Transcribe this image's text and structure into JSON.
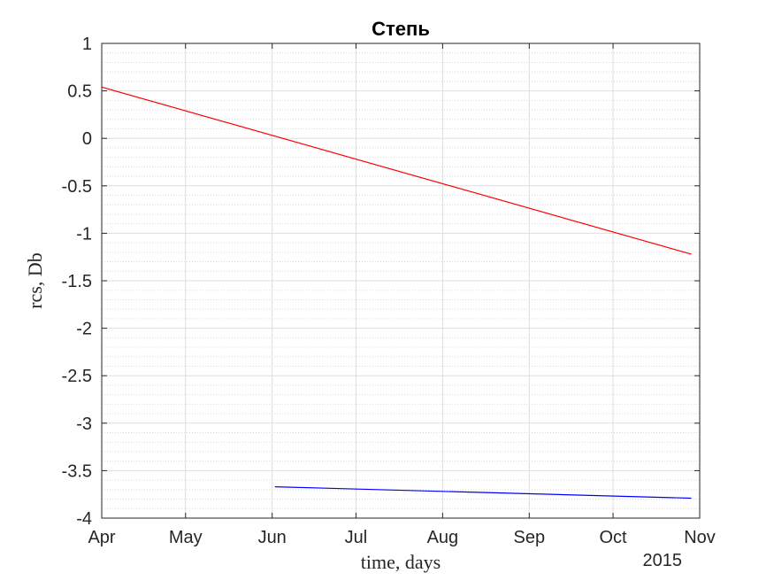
{
  "chart_data": {
    "type": "line",
    "title": "Степь",
    "xlabel": "time, days",
    "ylabel": "rcs, Db",
    "x_secondary_label": "2015",
    "x_ticks": [
      "Apr",
      "May",
      "Jun",
      "Jul",
      "Aug",
      "Sep",
      "Oct",
      "Nov"
    ],
    "x_tick_dates": [
      "2015-04-01",
      "2015-05-01",
      "2015-06-01",
      "2015-07-01",
      "2015-08-01",
      "2015-09-01",
      "2015-10-01",
      "2015-11-01"
    ],
    "xlim": [
      "2015-04-01",
      "2015-11-01"
    ],
    "ylim": [
      -4,
      1
    ],
    "y_ticks": [
      1,
      0.5,
      0,
      -0.5,
      -1,
      -1.5,
      -2,
      -2.5,
      -3,
      -3.5,
      -4
    ],
    "grid": true,
    "minor_grid": true,
    "series": [
      {
        "color": "#ff0000",
        "x": [
          "2015-04-01",
          "2015-10-29"
        ],
        "y": [
          0.54,
          -1.22
        ]
      },
      {
        "color": "#0000ff",
        "x": [
          "2015-06-02",
          "2015-10-29"
        ],
        "y": [
          -3.67,
          -3.79
        ]
      }
    ]
  }
}
